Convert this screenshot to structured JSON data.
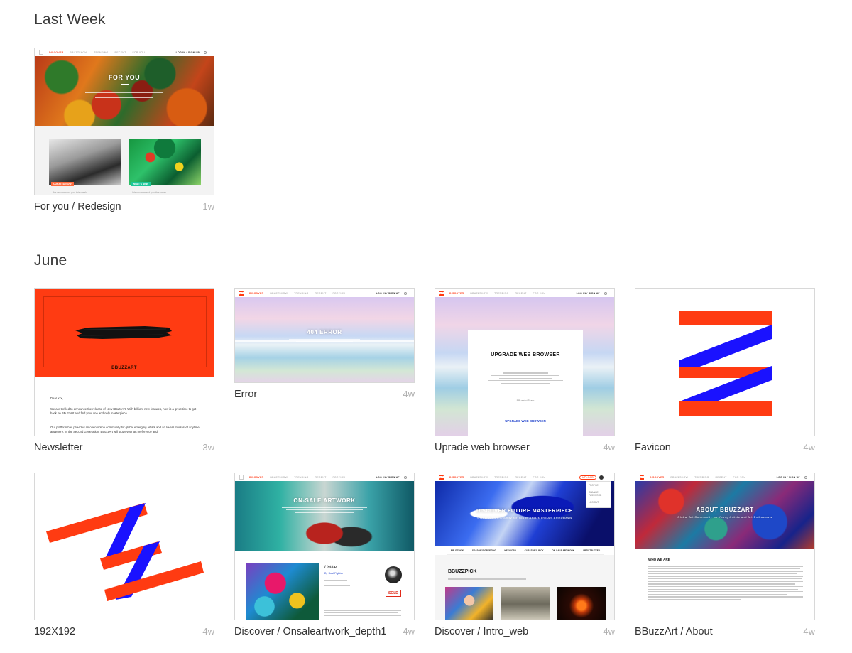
{
  "sections": [
    {
      "title": "Last Week"
    },
    {
      "title": "June"
    }
  ],
  "cards": [
    {
      "name": "For you / Redesign",
      "age": "1w"
    },
    {
      "name": "Newsletter",
      "age": "3w"
    },
    {
      "name": "Error",
      "age": "4w"
    },
    {
      "name": "Uprade web browser",
      "age": "4w"
    },
    {
      "name": "Favicon",
      "age": "4w"
    },
    {
      "name": "192X192",
      "age": "4w"
    },
    {
      "name": "Discover / Onsaleartwork_depth1",
      "age": "4w"
    },
    {
      "name": "Discover / Intro_web",
      "age": "4w"
    },
    {
      "name": "BBuzzArt / About",
      "age": "4w"
    }
  ],
  "thumbs": {
    "nav": {
      "discover": "DISCOVER",
      "bbuzzshow": "BBUZZSHOW",
      "trending": "TRENDING",
      "recent": "RECENT",
      "for_you": "FOR YOU",
      "login": "LOG IN / SIGN UP",
      "upload": "UPLOAD"
    },
    "for_you": {
      "hero": "FOR YOU",
      "badge_curated": "CURATED NOW",
      "badge_new": "WHAT'S NEW",
      "caption": "We recommend you this week"
    },
    "newsletter": {
      "brand": "BBUZZART",
      "greeting": "Dear xxx,",
      "p1": "We are thrilled to announce the release of New BBuzzArt! With brilliant new features, now is a great time to get back on BBuzzArt and find your one and only masterpiece.",
      "p2": "Our platform has provided an open online community for global emerging artists and art lovers to interact anytime anywhere. In the Second Generation, BBuzzArt will study your art preference and"
    },
    "error": {
      "hero": "404 ERROR"
    },
    "upgrade": {
      "title": "UPGRADE WEB BROWSER",
      "link": "UPGRADE WEB BROWSER",
      "sign": "- BBuzzArt Team -"
    },
    "onsale": {
      "hero": "ON-SALE ARTWORK",
      "art_title": "Untitle",
      "artist": "By Soul Fighter",
      "sold": "SOLD"
    },
    "intro": {
      "hero": "DISCOVER FUTURE MASTERPIECE",
      "sub": "Global Art Community for Young Artists and Art Enthusiasts",
      "section": "BBUZZPICK",
      "tabs": [
        "BBUZZPICK",
        "SEASON'S GREETING",
        "KEYWORD",
        "CURATOR'S PICK",
        "ON-SALE ARTWORK",
        "ARTISTBUZZED"
      ],
      "menu": [
        "PROFILE",
        "CHANGE PASSWORD",
        "LOG OUT"
      ]
    },
    "about": {
      "hero": "ABOUT BBUZZART",
      "sub": "Global Art Community for Young Artists and Art Enthusiasts",
      "heading": "WHO WE ARE"
    }
  },
  "colors": {
    "brand_red": "#ff3b12",
    "brand_blue": "#1a12ff",
    "link_blue": "#2244cc"
  }
}
